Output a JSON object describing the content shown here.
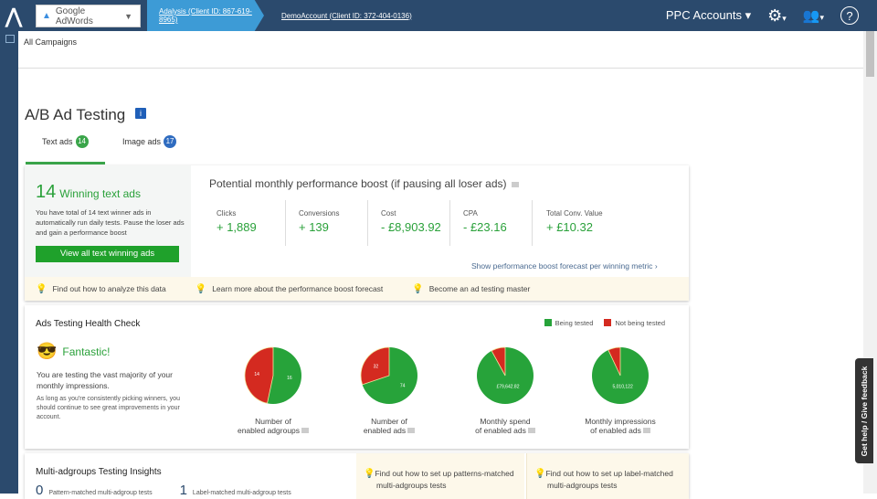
{
  "header": {
    "adwords_label": "Google AdWords",
    "crumbs": [
      "Adalysis (Client ID: 867-619-8965)",
      "DemoAccount (Client ID: 372-404-0136)"
    ],
    "ppc_accounts": "PPC Accounts",
    "icons": [
      "gear-icon",
      "users-icon",
      "help-icon"
    ]
  },
  "breadcrumb": "All Campaigns",
  "page_title": "A/B Ad Testing",
  "tabs": [
    {
      "label": "Text ads",
      "count": "14"
    },
    {
      "label": "Image ads",
      "count": "17"
    }
  ],
  "winning": {
    "count": "14",
    "label": "Winning text ads",
    "description": "You have total of 14 text winner ads in automatically run daily tests. Pause the loser ads and gain a performance boost",
    "button": "View all text winning ads"
  },
  "boost": {
    "title": "Potential monthly performance boost (if pausing all loser ads)",
    "metrics": [
      {
        "label": "Clicks",
        "value": "+ 1,889"
      },
      {
        "label": "Conversions",
        "value": "+ 139"
      },
      {
        "label": "Cost",
        "value": "- £8,903.92"
      },
      {
        "label": "CPA",
        "value": "- £23.16"
      },
      {
        "label": "Total Conv. Value",
        "value": "+ £10.32"
      }
    ],
    "link": "Show performance boost forecast per winning metric"
  },
  "tips": [
    "Find out how to analyze this data",
    "Learn more about the performance boost forecast",
    "Become an ad testing master"
  ],
  "health": {
    "title": "Ads Testing Health Check",
    "legend": [
      "Being tested",
      "Not being tested"
    ],
    "status": "Fantastic!",
    "text1": "You are testing the vast majority of your monthly impressions.",
    "text2": "As long as you're consistently picking winners, you should continue to see great improvements in your account.",
    "pies": [
      {
        "label1": "Number of",
        "label2": "enabled adgroups",
        "tested": 16,
        "not_tested": 14,
        "tested_label": "16",
        "not_label": "14"
      },
      {
        "label1": "Number of",
        "label2": "enabled ads",
        "tested": 74,
        "not_tested": 32,
        "tested_label": "74",
        "not_label": "32"
      },
      {
        "label1": "Monthly spend",
        "label2": "of enabled ads",
        "tested": 0.92,
        "not_tested": 0.08,
        "tested_label": "£79,642.82",
        "not_label": ""
      },
      {
        "label1": "Monthly impressions",
        "label2": "of enabled ads",
        "tested": 0.93,
        "not_tested": 0.07,
        "tested_label": "5,010,122",
        "not_label": ""
      }
    ]
  },
  "multi": {
    "title": "Multi-adgroups Testing Insights",
    "stats": [
      {
        "n": "0",
        "label": "Pattern-matched multi-adgroup tests"
      },
      {
        "n": "1",
        "label": "Label-matched multi-adgroup tests"
      }
    ],
    "tips": [
      "Find out how to set up patterns-matched multi-adgroups tests",
      "Find out how to set up label-matched multi-adgroups tests"
    ]
  },
  "feedback": "Get help / Give feedback",
  "colors": {
    "green": "#27a33a",
    "red": "#d42a20",
    "navy": "#2b4a6d",
    "blue": "#3d9bd6"
  }
}
